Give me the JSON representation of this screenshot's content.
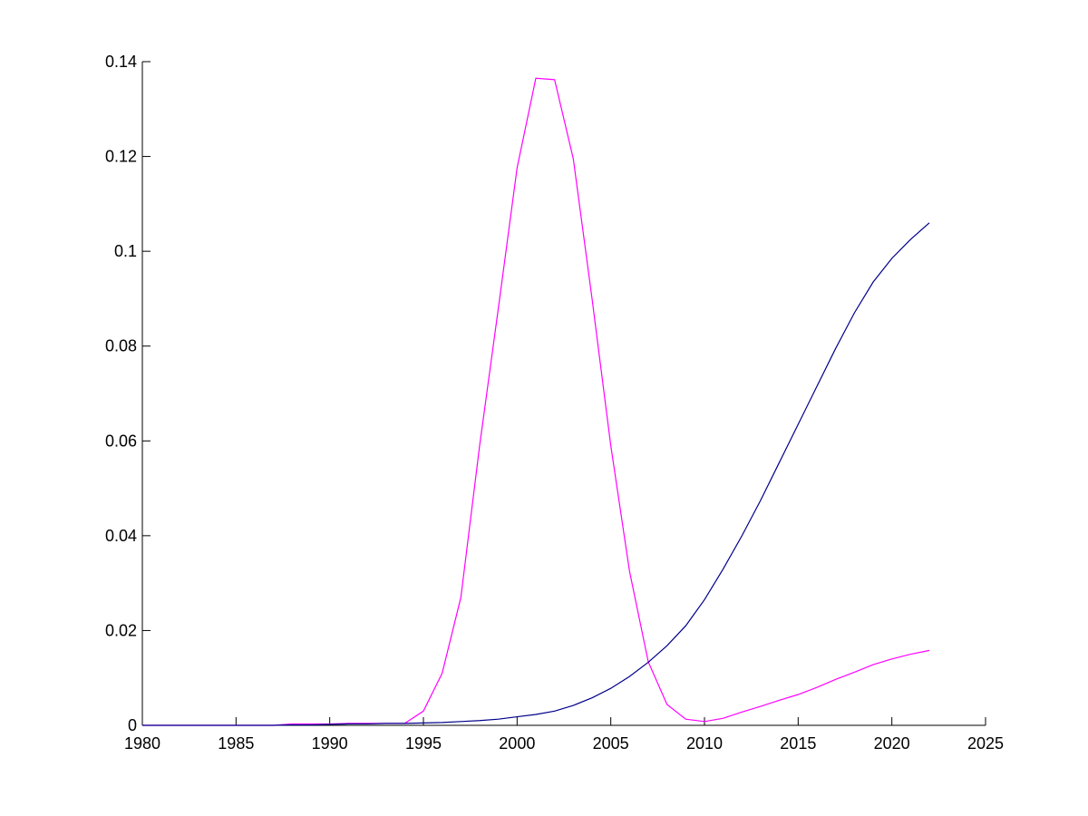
{
  "chart_data": {
    "type": "line",
    "x": [
      1980,
      1981,
      1982,
      1983,
      1984,
      1985,
      1986,
      1987,
      1988,
      1989,
      1990,
      1991,
      1992,
      1993,
      1994,
      1995,
      1996,
      1997,
      1998,
      1999,
      2000,
      2001,
      2002,
      2003,
      2004,
      2005,
      2006,
      2007,
      2008,
      2009,
      2010,
      2011,
      2012,
      2013,
      2014,
      2015,
      2016,
      2017,
      2018,
      2019,
      2020,
      2021,
      2022
    ],
    "series": [
      {
        "color": "#ff00ff",
        "values": [
          0,
          0,
          0,
          0,
          0,
          0,
          0,
          0,
          0.0003,
          0.0003,
          0.0003,
          0.0004,
          0.0004,
          0.0004,
          0.0004,
          0.003,
          0.011,
          0.027,
          0.059,
          0.088,
          0.1176,
          0.1365,
          0.1362,
          0.1195,
          0.09,
          0.059,
          0.0325,
          0.0134,
          0.0044,
          0.0013,
          0.0008,
          0.0015,
          0.0028,
          0.004,
          0.0053,
          0.0065,
          0.008,
          0.0097,
          0.0112,
          0.0128,
          0.014,
          0.015,
          0.0158
        ]
      },
      {
        "color": "#00008b",
        "values": [
          0,
          0,
          0,
          0,
          0,
          0,
          0,
          0,
          0.0001,
          0.0001,
          0.0002,
          0.0003,
          0.0003,
          0.0004,
          0.0004,
          0.0005,
          0.0006,
          0.0008,
          0.001,
          0.0013,
          0.0018,
          0.0023,
          0.003,
          0.0042,
          0.0058,
          0.0078,
          0.0103,
          0.0133,
          0.0168,
          0.021,
          0.0265,
          0.033,
          0.04,
          0.0475,
          0.0555,
          0.0635,
          0.0715,
          0.0795,
          0.087,
          0.0935,
          0.0985,
          0.1025,
          0.106
        ]
      }
    ],
    "xlim": [
      1980,
      2025
    ],
    "xticks": [
      1980,
      1985,
      1990,
      1995,
      2000,
      2005,
      2010,
      2015,
      2020,
      2025
    ],
    "ylim": [
      0,
      0.14
    ],
    "yticks": [
      0,
      0.02,
      0.04,
      0.06,
      0.08,
      0.1,
      0.12,
      0.14
    ]
  }
}
